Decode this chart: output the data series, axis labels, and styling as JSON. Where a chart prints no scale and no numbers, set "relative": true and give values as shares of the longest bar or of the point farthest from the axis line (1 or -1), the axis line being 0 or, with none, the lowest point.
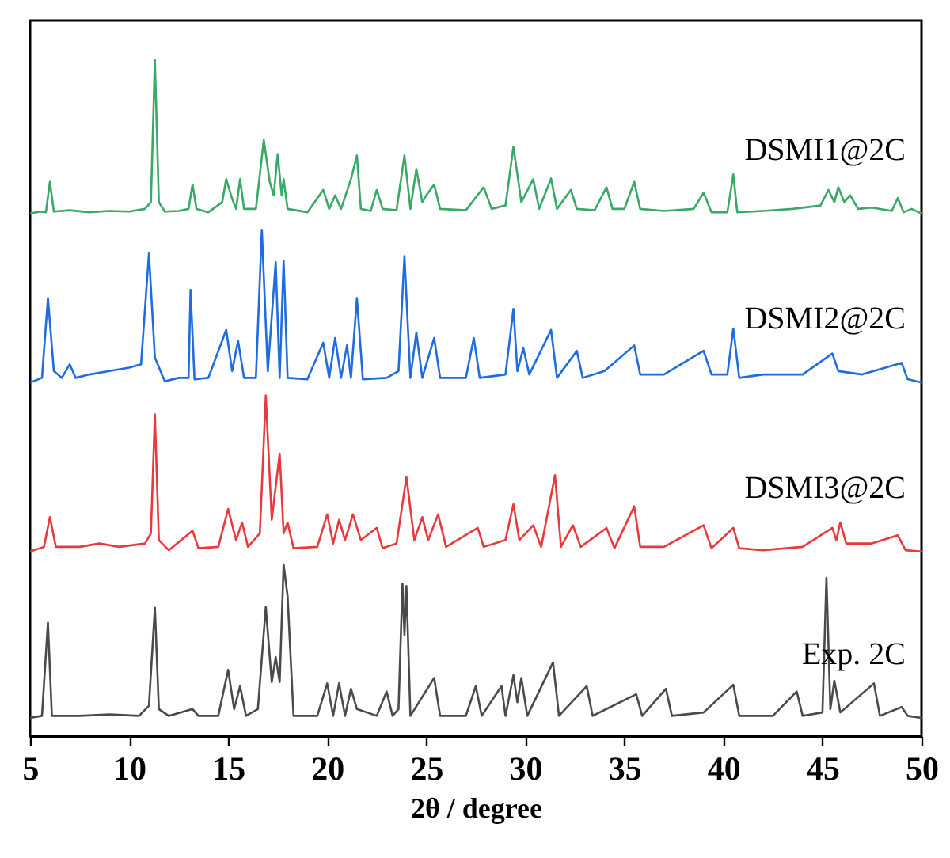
{
  "chart_data": {
    "type": "line",
    "xlabel": "2θ / degree",
    "relative": true,
    "xlim": [
      5,
      50
    ],
    "xticks": [
      5,
      10,
      15,
      20,
      25,
      30,
      35,
      40,
      45,
      50
    ],
    "grid": false,
    "marker": "none",
    "line_style": "solid",
    "series": [
      {
        "name": "DSMI1@2C",
        "color": "#3aa866",
        "x": [
          5,
          5.5,
          5.8,
          6.0,
          6.2,
          7.0,
          8.0,
          9.0,
          10.0,
          10.8,
          11.1,
          11.3,
          11.5,
          11.8,
          12.5,
          13.0,
          13.2,
          13.4,
          14.0,
          14.7,
          14.9,
          15.2,
          15.4,
          15.6,
          15.8,
          16.4,
          16.8,
          17.1,
          17.3,
          17.5,
          17.7,
          17.8,
          18.0,
          19.0,
          19.8,
          20.1,
          20.4,
          20.7,
          21.2,
          21.5,
          21.7,
          22.2,
          22.5,
          22.8,
          23.5,
          23.9,
          24.2,
          24.5,
          24.8,
          25.0,
          25.4,
          25.7,
          27.0,
          27.9,
          28.3,
          29.0,
          29.4,
          29.8,
          30.4,
          30.7,
          31.3,
          31.6,
          32.3,
          32.6,
          33.5,
          34.1,
          34.4,
          35.0,
          35.5,
          35.8,
          37.0,
          38.5,
          39.0,
          39.4,
          40.2,
          40.5,
          40.7,
          42.0,
          43.5,
          44.9,
          45.3,
          45.6,
          45.8,
          46.1,
          46.4,
          46.8,
          47.5,
          48.5,
          48.8,
          49.1,
          49.5,
          50
        ],
        "values": [
          0.773,
          0.776,
          0.775,
          0.82,
          0.776,
          0.778,
          0.775,
          0.777,
          0.776,
          0.78,
          0.79,
          1.0,
          0.79,
          0.776,
          0.777,
          0.78,
          0.816,
          0.78,
          0.775,
          0.79,
          0.824,
          0.795,
          0.78,
          0.824,
          0.78,
          0.78,
          0.882,
          0.82,
          0.8,
          0.861,
          0.8,
          0.824,
          0.78,
          0.775,
          0.808,
          0.78,
          0.8,
          0.78,
          0.824,
          0.859,
          0.78,
          0.777,
          0.808,
          0.78,
          0.778,
          0.859,
          0.78,
          0.839,
          0.79,
          0.8,
          0.816,
          0.78,
          0.778,
          0.812,
          0.78,
          0.785,
          0.872,
          0.79,
          0.824,
          0.78,
          0.825,
          0.78,
          0.808,
          0.78,
          0.778,
          0.812,
          0.78,
          0.78,
          0.82,
          0.78,
          0.777,
          0.78,
          0.804,
          0.775,
          0.775,
          0.831,
          0.775,
          0.777,
          0.78,
          0.785,
          0.808,
          0.79,
          0.812,
          0.79,
          0.8,
          0.78,
          0.782,
          0.777,
          0.796,
          0.775,
          0.78,
          0.773
        ]
      },
      {
        "name": "DSMI2@2C",
        "color": "#1f6be0",
        "x": [
          5,
          5.6,
          5.9,
          6.2,
          6.6,
          7.0,
          7.3,
          8.0,
          9.0,
          10.0,
          10.6,
          11.0,
          11.3,
          11.8,
          12.5,
          13.0,
          13.1,
          13.3,
          14.0,
          14.9,
          15.2,
          15.5,
          15.8,
          16.4,
          16.7,
          17.0,
          17.4,
          17.6,
          17.8,
          18.0,
          19.0,
          19.8,
          20.1,
          20.4,
          20.7,
          21.0,
          21.2,
          21.5,
          21.8,
          23.0,
          23.6,
          23.9,
          24.2,
          24.5,
          24.8,
          25.4,
          25.7,
          27.0,
          27.4,
          27.7,
          29.0,
          29.4,
          29.6,
          29.9,
          30.2,
          31.3,
          31.6,
          32.6,
          32.9,
          34.0,
          35.5,
          35.8,
          37.0,
          39.0,
          39.4,
          40.2,
          40.5,
          40.8,
          42.0,
          44.0,
          45.5,
          45.8,
          47.0,
          49.0,
          49.3,
          50
        ],
        "values": [
          0.523,
          0.53,
          0.648,
          0.54,
          0.53,
          0.55,
          0.53,
          0.535,
          0.54,
          0.545,
          0.55,
          0.714,
          0.56,
          0.525,
          0.53,
          0.53,
          0.66,
          0.528,
          0.53,
          0.601,
          0.54,
          0.585,
          0.53,
          0.53,
          0.749,
          0.54,
          0.701,
          0.53,
          0.703,
          0.53,
          0.528,
          0.582,
          0.53,
          0.589,
          0.53,
          0.578,
          0.53,
          0.648,
          0.528,
          0.53,
          0.54,
          0.71,
          0.53,
          0.597,
          0.53,
          0.589,
          0.53,
          0.53,
          0.589,
          0.53,
          0.535,
          0.632,
          0.54,
          0.574,
          0.535,
          0.601,
          0.53,
          0.57,
          0.53,
          0.54,
          0.578,
          0.535,
          0.535,
          0.57,
          0.535,
          0.535,
          0.603,
          0.53,
          0.535,
          0.535,
          0.566,
          0.54,
          0.535,
          0.552,
          0.528,
          0.523
        ]
      },
      {
        "name": "DSMI3@2C",
        "color": "#e8393c",
        "x": [
          5,
          5.7,
          6.0,
          6.3,
          7.5,
          8.5,
          9.5,
          10.8,
          11.1,
          11.3,
          11.5,
          12.0,
          13.2,
          13.5,
          14.5,
          15.0,
          15.4,
          15.7,
          16.0,
          16.6,
          16.9,
          17.2,
          17.6,
          17.8,
          18.0,
          18.3,
          19.5,
          20.0,
          20.3,
          20.6,
          20.9,
          21.3,
          21.7,
          22.5,
          22.8,
          23.5,
          24.0,
          24.4,
          24.8,
          25.1,
          25.6,
          26.0,
          27.6,
          27.9,
          29.0,
          29.4,
          29.7,
          30.4,
          30.8,
          31.5,
          31.8,
          32.4,
          32.8,
          34.1,
          34.5,
          35.5,
          35.8,
          37.0,
          39.0,
          39.4,
          40.5,
          40.8,
          42.0,
          44.0,
          45.5,
          45.7,
          45.9,
          46.2,
          47.5,
          48.8,
          49.2,
          50
        ],
        "values": [
          0.273,
          0.28,
          0.324,
          0.28,
          0.28,
          0.285,
          0.28,
          0.285,
          0.3,
          0.476,
          0.29,
          0.275,
          0.304,
          0.278,
          0.28,
          0.336,
          0.29,
          0.316,
          0.28,
          0.3,
          0.504,
          0.32,
          0.418,
          0.3,
          0.316,
          0.278,
          0.28,
          0.328,
          0.285,
          0.32,
          0.29,
          0.328,
          0.29,
          0.308,
          0.278,
          0.285,
          0.383,
          0.29,
          0.324,
          0.29,
          0.328,
          0.28,
          0.308,
          0.28,
          0.29,
          0.343,
          0.29,
          0.312,
          0.28,
          0.386,
          0.28,
          0.312,
          0.28,
          0.308,
          0.278,
          0.34,
          0.28,
          0.28,
          0.312,
          0.278,
          0.308,
          0.278,
          0.275,
          0.28,
          0.308,
          0.29,
          0.316,
          0.285,
          0.285,
          0.297,
          0.275,
          0.273
        ]
      },
      {
        "name": "Exp. 2C",
        "color": "#4a4a4a",
        "x": [
          5,
          5.6,
          5.9,
          6.1,
          7.5,
          9.0,
          10.5,
          11.0,
          11.3,
          11.5,
          12.0,
          13.2,
          13.5,
          14.5,
          15.0,
          15.3,
          15.6,
          15.9,
          16.5,
          16.9,
          17.2,
          17.4,
          17.6,
          17.8,
          18.0,
          18.3,
          19.5,
          20.0,
          20.3,
          20.6,
          20.9,
          21.2,
          21.5,
          22.5,
          23.0,
          23.3,
          23.6,
          23.8,
          23.9,
          24.0,
          24.2,
          25.4,
          25.7,
          27.0,
          27.5,
          27.8,
          28.8,
          29.0,
          29.4,
          29.6,
          29.8,
          30.1,
          31.4,
          31.7,
          33.1,
          33.4,
          35.6,
          35.9,
          37.1,
          37.4,
          39.0,
          40.5,
          40.8,
          42.5,
          43.7,
          44.0,
          45.0,
          45.2,
          45.4,
          45.6,
          45.9,
          47.6,
          47.9,
          49.0,
          49.3,
          50
        ],
        "values": [
          0.027,
          0.03,
          0.168,
          0.03,
          0.03,
          0.032,
          0.03,
          0.045,
          0.19,
          0.04,
          0.03,
          0.04,
          0.03,
          0.03,
          0.098,
          0.04,
          0.074,
          0.03,
          0.04,
          0.191,
          0.08,
          0.117,
          0.08,
          0.254,
          0.207,
          0.03,
          0.03,
          0.078,
          0.03,
          0.078,
          0.03,
          0.07,
          0.04,
          0.03,
          0.066,
          0.03,
          0.04,
          0.226,
          0.15,
          0.222,
          0.03,
          0.086,
          0.03,
          0.03,
          0.074,
          0.03,
          0.074,
          0.03,
          0.09,
          0.05,
          0.086,
          0.03,
          0.109,
          0.03,
          0.074,
          0.03,
          0.062,
          0.03,
          0.07,
          0.03,
          0.035,
          0.076,
          0.03,
          0.03,
          0.066,
          0.03,
          0.035,
          0.234,
          0.04,
          0.082,
          0.035,
          0.078,
          0.03,
          0.043,
          0.03,
          0.027
        ]
      }
    ]
  }
}
